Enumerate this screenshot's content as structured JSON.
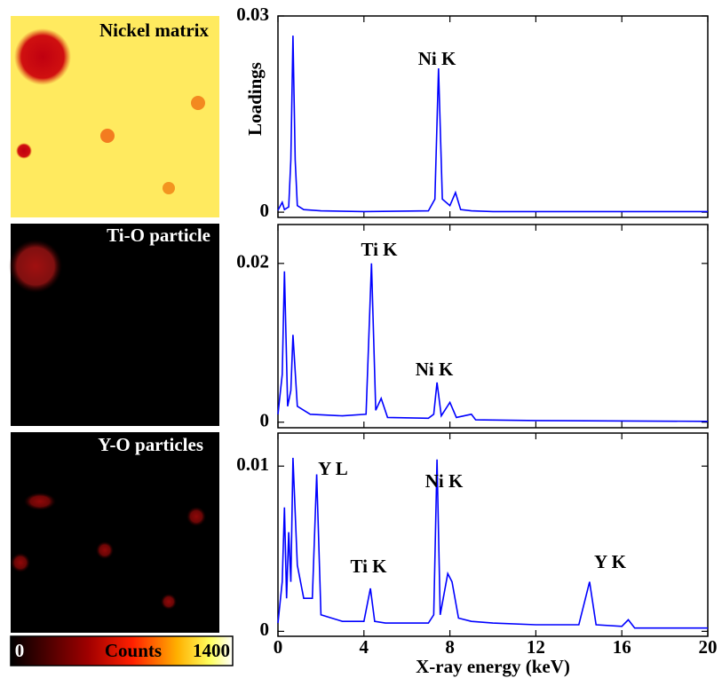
{
  "chart_data": [
    {
      "type": "line",
      "ylabel": "Loadings",
      "color": "#0000ff",
      "x": [
        0,
        0.2,
        0.3,
        0.5,
        0.6,
        0.7,
        0.8,
        0.9,
        1.2,
        2,
        4,
        7,
        7.3,
        7.47,
        7.65,
        8.0,
        8.26,
        8.5,
        9,
        10,
        14,
        20
      ],
      "values": [
        0.0003,
        0.0015,
        0.0004,
        0.0008,
        0.008,
        0.027,
        0.008,
        0.001,
        0.0004,
        0.0002,
        0.0001,
        0.0002,
        0.002,
        0.022,
        0.002,
        0.001,
        0.003,
        0.0004,
        0.0002,
        0.0001,
        0.0001,
        0.0001
      ],
      "xlim": [
        0,
        20
      ],
      "xticks": [
        0,
        4,
        8,
        12,
        16,
        20
      ],
      "ylim": [
        -0.0008,
        0.03
      ],
      "yticks": [
        0,
        0.03
      ],
      "annotations": [
        "Ni K"
      ]
    },
    {
      "type": "line",
      "color": "#0000ff",
      "x": [
        0,
        0.2,
        0.3,
        0.45,
        0.6,
        0.7,
        0.9,
        1.5,
        3,
        4.1,
        4.35,
        4.55,
        4.8,
        5.1,
        7,
        7.25,
        7.4,
        7.6,
        8.0,
        8.3,
        9,
        9.2,
        12,
        20
      ],
      "values": [
        0.001,
        0.006,
        0.019,
        0.002,
        0.004,
        0.011,
        0.002,
        0.001,
        0.0008,
        0.001,
        0.02,
        0.0015,
        0.003,
        0.0006,
        0.0005,
        0.001,
        0.005,
        0.0008,
        0.0025,
        0.0006,
        0.001,
        0.0003,
        0.0002,
        0.0001
      ],
      "xlim": [
        0,
        20
      ],
      "xticks": [
        0,
        4,
        8,
        12,
        16,
        20
      ],
      "ylim": [
        -0.0007,
        0.0249
      ],
      "yticks": [
        0,
        0.02
      ],
      "annotations": [
        "Ti K",
        "Ni K"
      ]
    },
    {
      "type": "line",
      "color": "#0000ff",
      "xlabel": "X-ray energy (keV)",
      "x": [
        0,
        0.2,
        0.3,
        0.4,
        0.5,
        0.6,
        0.7,
        0.9,
        1.2,
        1.6,
        1.8,
        2.0,
        2.5,
        3,
        4.0,
        4.3,
        4.5,
        5,
        6,
        7,
        7.25,
        7.4,
        7.55,
        7.9,
        8.1,
        8.4,
        9,
        10,
        12,
        14,
        14.5,
        14.8,
        16,
        16.3,
        16.6,
        18,
        20
      ],
      "values": [
        0.0005,
        0.003,
        0.0075,
        0.002,
        0.006,
        0.003,
        0.0105,
        0.004,
        0.002,
        0.002,
        0.0095,
        0.001,
        0.0008,
        0.0006,
        0.0006,
        0.0026,
        0.0006,
        0.0005,
        0.0005,
        0.0005,
        0.001,
        0.0104,
        0.001,
        0.0035,
        0.003,
        0.0008,
        0.0006,
        0.0005,
        0.0004,
        0.0004,
        0.003,
        0.0004,
        0.0003,
        0.0007,
        0.0002,
        0.0002,
        0.0002
      ],
      "xlim": [
        0,
        20
      ],
      "xticks": [
        0,
        4,
        8,
        12,
        16,
        20
      ],
      "ylim": [
        -0.0003,
        0.012
      ],
      "yticks": [
        0,
        0.01
      ],
      "annotations": [
        "Y L",
        "Ni K",
        "Ti K",
        "Y K"
      ]
    }
  ],
  "images": [
    "Nickel matrix",
    "Ti-O particle",
    "Y-O particles"
  ],
  "colorbar": {
    "label": "Counts",
    "ticks": [
      0,
      1400
    ]
  }
}
